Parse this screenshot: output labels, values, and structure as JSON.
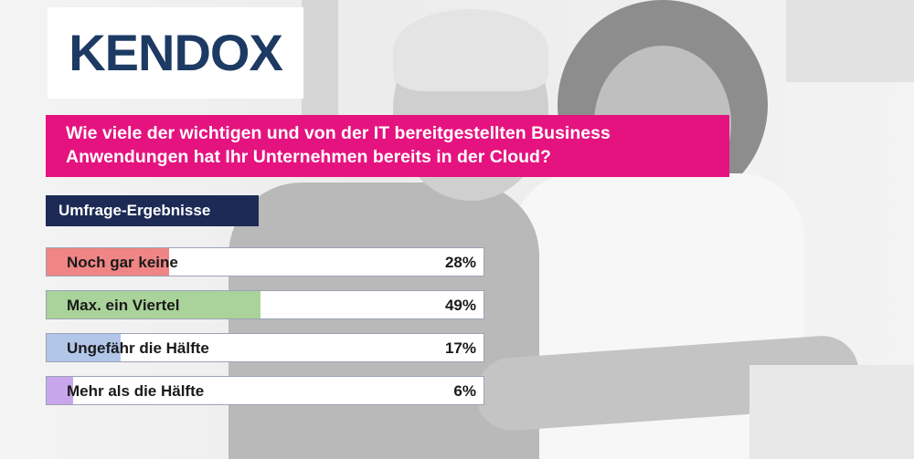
{
  "logo": {
    "text": "KENDOX"
  },
  "question": "Wie viele der wichtigen und von der IT bereitgestellten Business Anwendungen hat Ihr Unternehmen bereits in der Cloud?",
  "results_heading": "Umfrage-Ergebnisse",
  "colors": {
    "question_bg": "#e5137f",
    "heading_bg": "#1c2a55",
    "logo": "#1c3a63"
  },
  "chart_data": {
    "type": "bar",
    "orientation": "horizontal",
    "categories": [
      "Noch gar keine",
      "Max. ein Viertel",
      "Ungefähr die Hälfte",
      "Mehr als die Hälfte"
    ],
    "values": [
      28,
      49,
      17,
      6
    ],
    "labels": [
      "28%",
      "49%",
      "17%",
      "6%"
    ],
    "colors": [
      "#f08585",
      "#a9d39a",
      "#b2c6ea",
      "#c9a6ec"
    ],
    "unit": "%"
  }
}
